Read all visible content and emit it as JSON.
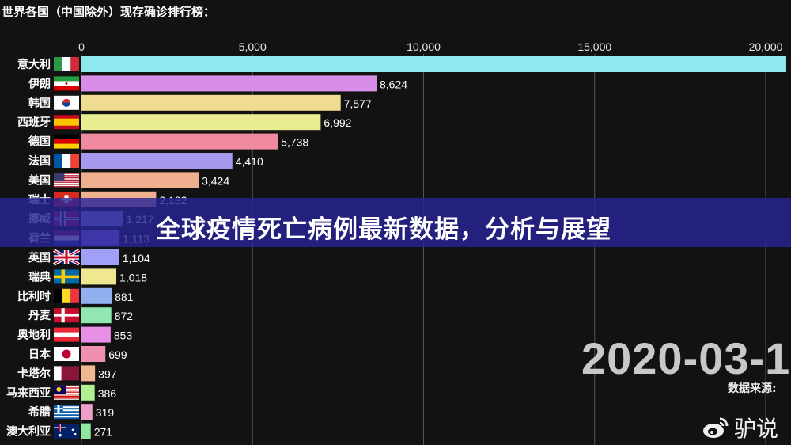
{
  "title": "世界各国（中国除外）现存确诊排行榜：",
  "banner": {
    "text": "全球疫情死亡病例最新数据，分析与展望",
    "color": "#28249a"
  },
  "date_label": "2020-03-1",
  "source_label": "数据来源: ",
  "watermark": {
    "icon": "weibo-icon",
    "text": "驴说"
  },
  "chart_data": {
    "type": "bar",
    "orientation": "horizontal",
    "xlim": [
      0,
      20000
    ],
    "ticks": [
      0,
      5000,
      10000,
      15000,
      20000
    ],
    "tick_labels": [
      "0",
      "5,000",
      "10,000",
      "15,000",
      "20,000"
    ],
    "grid": true,
    "categories": [
      "意大利",
      "伊朗",
      "韩国",
      "西班牙",
      "德国",
      "法国",
      "美国",
      "瑞士",
      "挪威",
      "荷兰",
      "英国",
      "瑞典",
      "比利时",
      "丹麦",
      "奥地利",
      "日本",
      "卡塔尔",
      "马来西亚",
      "希腊",
      "澳大利亚"
    ],
    "flags": [
      "it",
      "ir",
      "kr",
      "es",
      "de",
      "fr",
      "us",
      "ch",
      "no",
      "nl",
      "gb",
      "se",
      "be",
      "dk",
      "at",
      "jp",
      "qa",
      "my",
      "gr",
      "au"
    ],
    "values": [
      20600,
      8624,
      7577,
      6992,
      5738,
      4410,
      3424,
      2182,
      1217,
      1113,
      1104,
      1018,
      881,
      872,
      853,
      699,
      397,
      386,
      319,
      271
    ],
    "value_labels": [
      "",
      "8,624",
      "7,577",
      "6,992",
      "5,738",
      "4,410",
      "3,424",
      "2,182",
      "1,217",
      "1,113",
      "1,104",
      "1,018",
      "881",
      "872",
      "853",
      "699",
      "397",
      "386",
      "319",
      "271"
    ],
    "colors": [
      "#8ee8ef",
      "#d88ee8",
      "#f0dc90",
      "#e8ee90",
      "#f08aa0",
      "#a898ee",
      "#f0b090",
      "#f0b090",
      "#9aa8e0",
      "#a87cf8",
      "#a0a0f8",
      "#f0e890",
      "#90b0f0",
      "#90e8b0",
      "#e890e8",
      "#f090b0",
      "#f0b890",
      "#b0f090",
      "#f0a0c8",
      "#90e8a0"
    ]
  }
}
